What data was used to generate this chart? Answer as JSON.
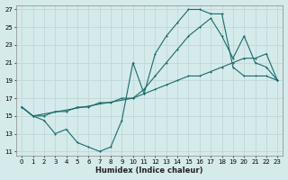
{
  "xlabel": "Humidex (Indice chaleur)",
  "bg_color": "#d5eaea",
  "grid_color": "#c0d8d8",
  "line_color": "#1a6b6b",
  "xlim": [
    -0.5,
    23.5
  ],
  "ylim": [
    10.5,
    27.5
  ],
  "xticks": [
    0,
    1,
    2,
    3,
    4,
    5,
    6,
    7,
    8,
    9,
    10,
    11,
    12,
    13,
    14,
    15,
    16,
    17,
    18,
    19,
    20,
    21,
    22,
    23
  ],
  "yticks": [
    11,
    13,
    15,
    17,
    19,
    21,
    23,
    25,
    27
  ],
  "line1_x": [
    0,
    1,
    2,
    3,
    4,
    5,
    6,
    7,
    8,
    9,
    10,
    11,
    12,
    13,
    14,
    15,
    16,
    17,
    18,
    19,
    20,
    21,
    22,
    23
  ],
  "line1_y": [
    16.0,
    15.0,
    14.5,
    13.0,
    13.5,
    12.0,
    11.5,
    11.0,
    11.5,
    14.5,
    21.0,
    17.5,
    22.0,
    24.0,
    25.5,
    27.0,
    27.0,
    26.5,
    26.5,
    20.5,
    19.5,
    19.5,
    19.5,
    19.0
  ],
  "line2_x": [
    0,
    1,
    10,
    11,
    12,
    13,
    14,
    15,
    16,
    17,
    18,
    19,
    20,
    21,
    22,
    23
  ],
  "line2_y": [
    16.0,
    15.0,
    17.0,
    18.0,
    19.5,
    21.0,
    22.5,
    24.0,
    25.0,
    26.0,
    24.0,
    21.5,
    24.0,
    21.0,
    20.5,
    19.0
  ],
  "line3_x": [
    0,
    1,
    2,
    3,
    4,
    5,
    6,
    7,
    8,
    9,
    10,
    11,
    12,
    13,
    14,
    15,
    16,
    17,
    18,
    19,
    20,
    21,
    22,
    23
  ],
  "line3_y": [
    16.0,
    15.0,
    15.0,
    15.5,
    15.5,
    16.0,
    16.0,
    16.5,
    16.5,
    17.0,
    17.0,
    17.5,
    18.0,
    18.5,
    19.0,
    19.5,
    19.5,
    20.0,
    20.5,
    21.0,
    21.5,
    21.5,
    22.0,
    19.0
  ]
}
